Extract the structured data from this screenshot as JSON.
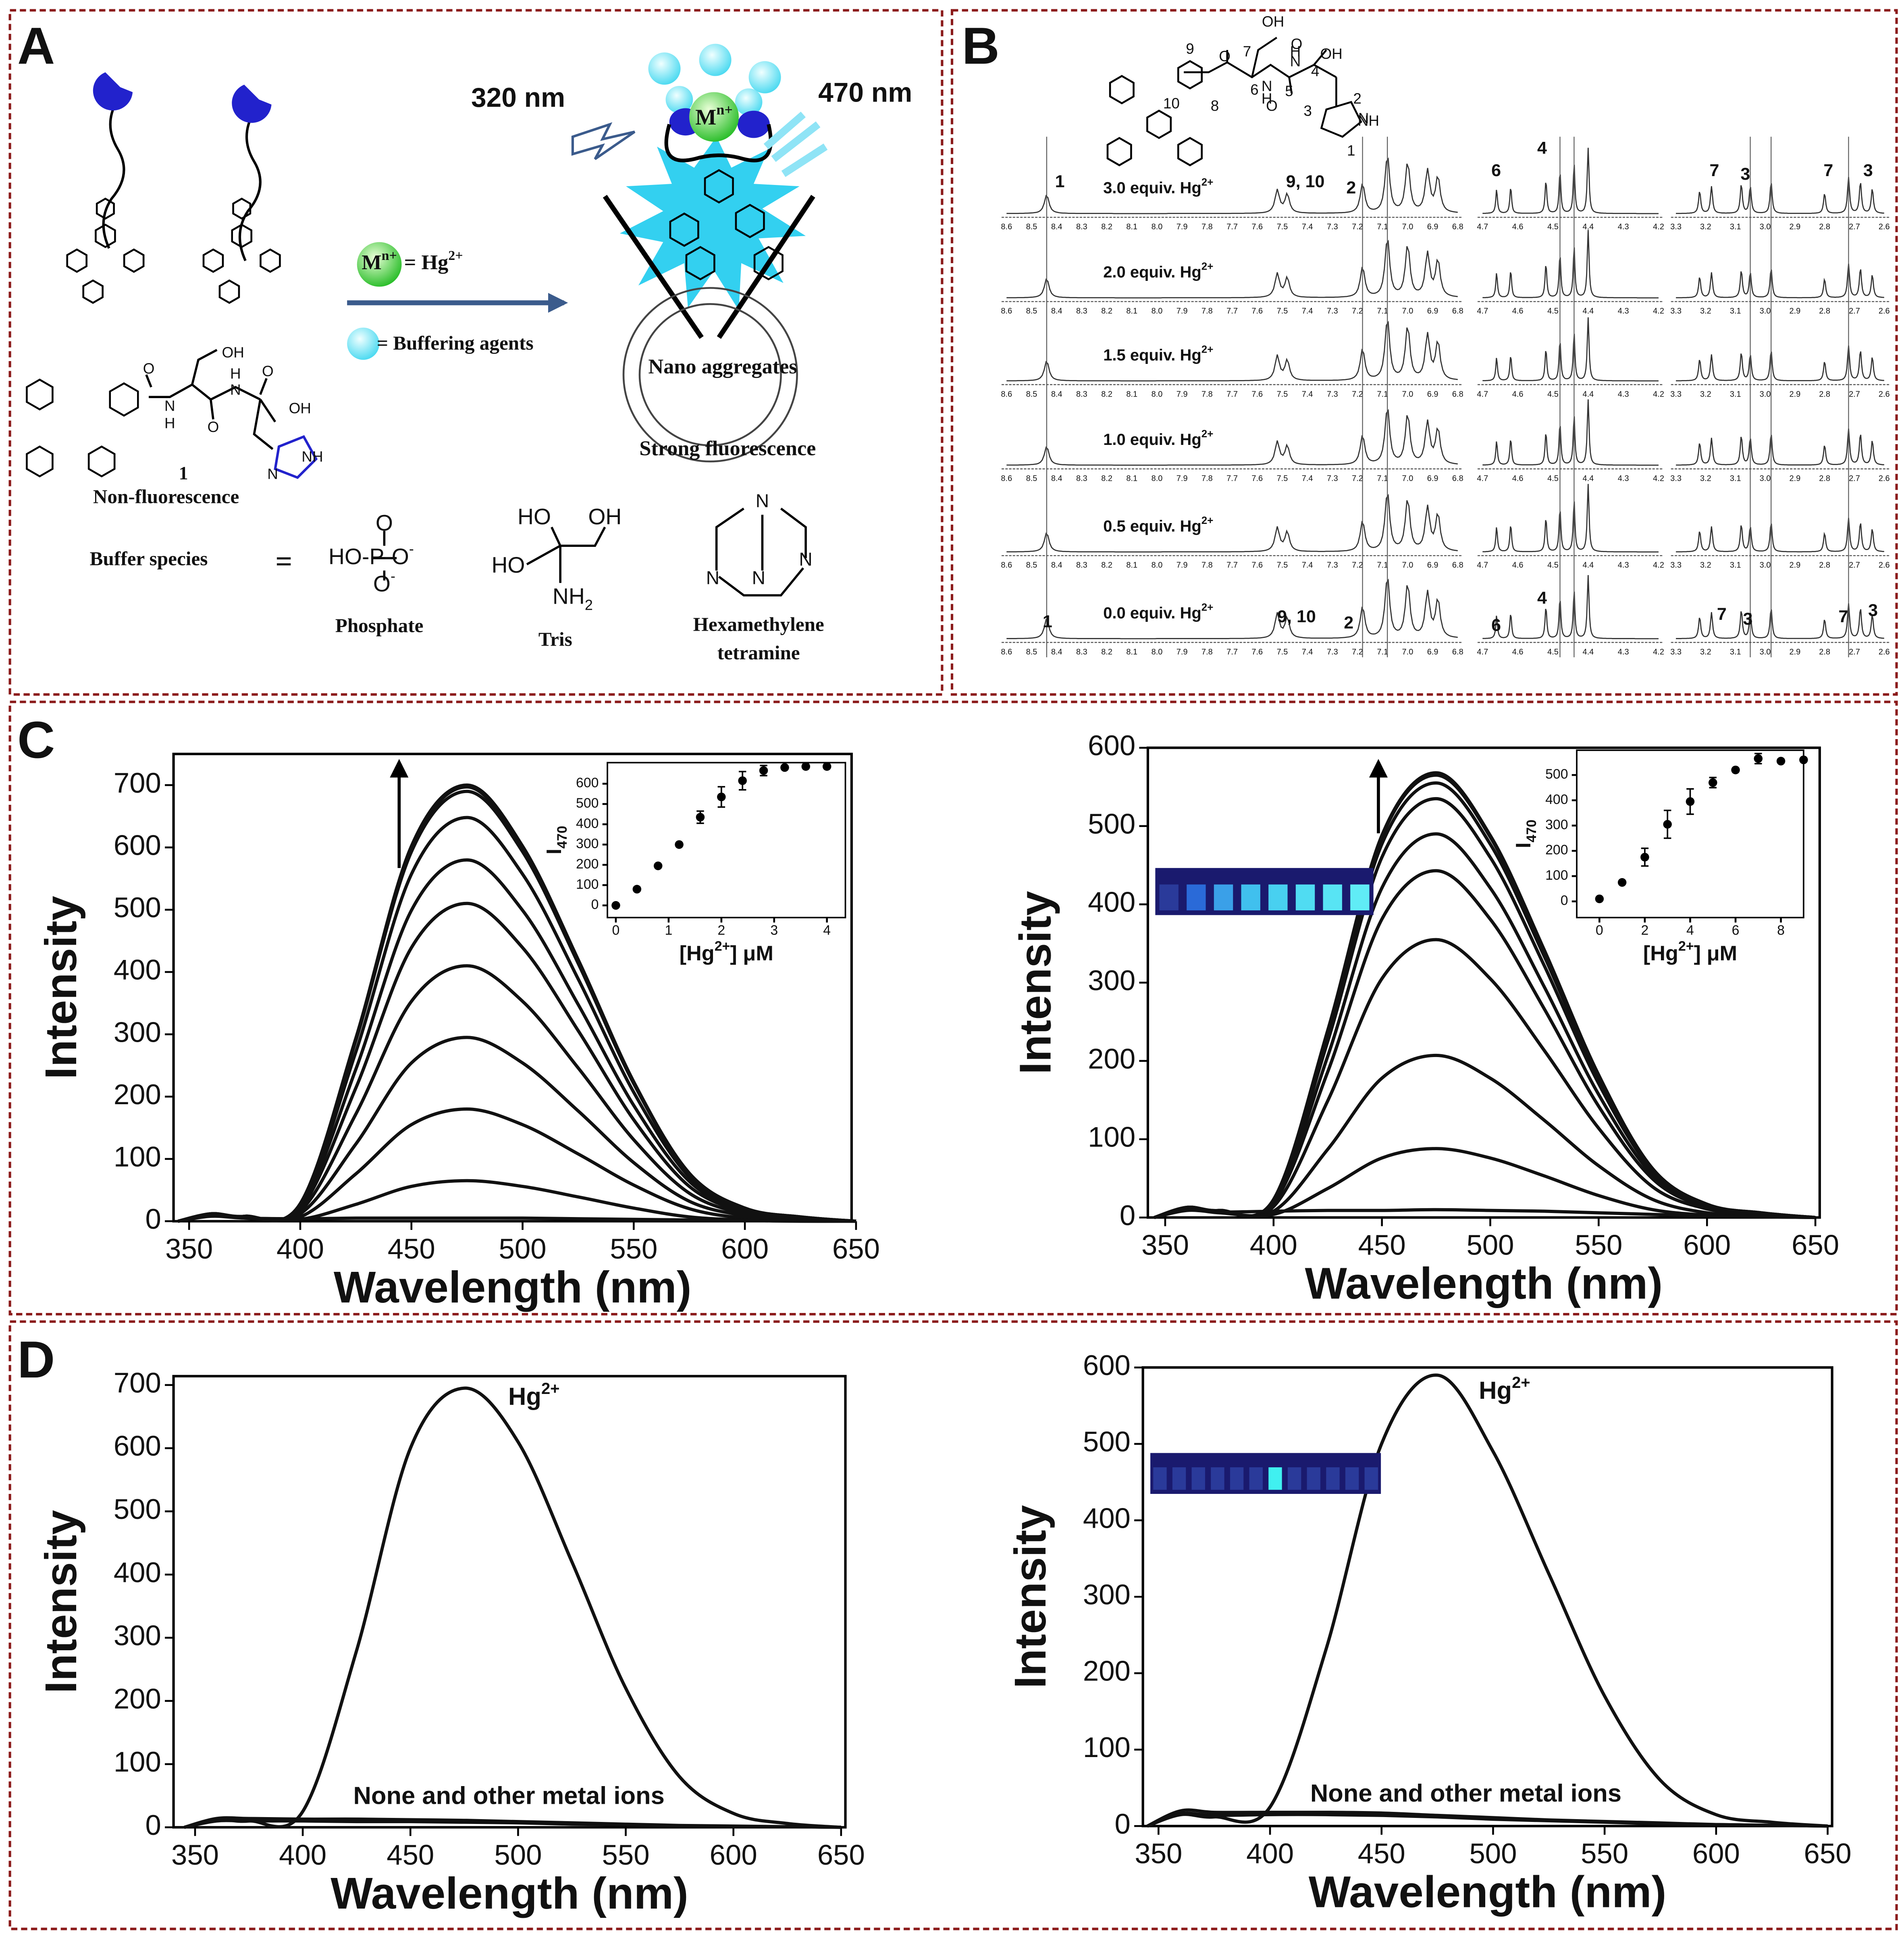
{
  "panels": [
    "A",
    "B",
    "C",
    "D"
  ],
  "panel_a": {
    "labels": [
      "320 nm",
      "470 nm",
      {
        "text": "M",
        "sup": "n+"
      },
      {
        "text": "M",
        "sup": "n+"
      },
      {
        "text": "= Hg",
        "sup": "2+"
      },
      "= Buffering agents",
      "Nano aggregates",
      "Strong fluorescence",
      "1",
      "Non-fluorescence",
      "Buffer species",
      "=",
      "Phosphate",
      "Tris",
      "Hexamethylene",
      "tetramine",
      "OH",
      "O",
      "N",
      "H",
      "O",
      "N",
      "H",
      "O",
      "OH",
      "N",
      "NH",
      "O",
      {
        "text": "HO-P-O",
        "sup": "-"
      },
      {
        "text": "O",
        "sup": "-"
      },
      "HO",
      "OH",
      "HO",
      {
        "text": "NH",
        "sub": "2"
      },
      "N",
      "N",
      "N",
      "N"
    ]
  },
  "panel_b": {
    "structure": [
      "OH",
      "O",
      "7",
      "O",
      "N",
      "H",
      "6",
      "N",
      "H",
      "5",
      "4",
      "O",
      "OH",
      "9",
      "10",
      "8",
      "3",
      "N",
      "2",
      "NH",
      "1"
    ],
    "spectra": [
      {
        "text": "3.0 equiv. Hg",
        "sup": "2+"
      },
      {
        "text": "2.0 equiv. Hg",
        "sup": "2+"
      },
      {
        "text": "1.5 equiv. Hg",
        "sup": "2+"
      },
      {
        "text": "1.0 equiv. Hg",
        "sup": "2+"
      },
      {
        "text": "0.5 equiv. Hg",
        "sup": "2+"
      },
      {
        "text": "0.0 equiv. Hg",
        "sup": "2+"
      }
    ],
    "axes": [
      [
        "8.6",
        "8.5",
        "8.4",
        "8.3",
        "8.2",
        "8.1",
        "8.0",
        "7.9",
        "7.8",
        "7.7",
        "7.6",
        "7.5",
        "7.4",
        "7.3",
        "7.2",
        "7.1",
        "7.0",
        "6.9",
        "6.8"
      ],
      [
        "4.7",
        "4.6",
        "4.5",
        "4.4",
        "4.3",
        "4.2"
      ],
      [
        "3.3",
        "3.2",
        "3.1",
        "3.0",
        "2.9",
        "2.8",
        "2.7",
        "2.6"
      ]
    ],
    "peaks_top": [
      "1",
      "9, 10",
      "2",
      "6",
      "4",
      "7",
      "3",
      "7",
      "3"
    ],
    "peaks_bottom": [
      "1",
      "9, 10",
      "2",
      "6",
      "4",
      "7",
      "3",
      "7",
      "3"
    ]
  },
  "chart_data": [
    {
      "type": "line",
      "color": "#111111",
      "xlabel": "Wavelength (nm)",
      "ylabel": "Intensity",
      "x": [
        345,
        360,
        375,
        400,
        425,
        450,
        475,
        500,
        525,
        550,
        575,
        600,
        625,
        650
      ],
      "xlim": [
        343,
        648
      ],
      "ylim": [
        0,
        750
      ],
      "xticks": [
        350,
        400,
        450,
        500,
        550,
        600,
        650
      ],
      "yticks": [
        0,
        100,
        200,
        300,
        400,
        500,
        600,
        700
      ],
      "series": [
        {
          "values": [
            0,
            12,
            8,
            28,
            294,
            602,
            700,
            602,
            420,
            224,
            77,
            21,
            7,
            0
          ]
        },
        {
          "values": [
            0,
            12,
            8,
            28,
            293,
            599,
            697,
            599,
            418,
            223,
            77,
            21,
            7,
            0
          ]
        },
        {
          "values": [
            0,
            12,
            8,
            28,
            290,
            593,
            690,
            593,
            414,
            221,
            76,
            21,
            7,
            0
          ]
        },
        {
          "values": [
            0,
            12,
            8,
            26,
            272,
            557,
            648,
            557,
            389,
            207,
            71,
            19,
            6,
            0
          ]
        },
        {
          "values": [
            0,
            12,
            8,
            23,
            244,
            499,
            580,
            499,
            348,
            186,
            64,
            17,
            6,
            0
          ]
        },
        {
          "values": [
            0,
            12,
            7,
            20,
            214,
            439,
            510,
            439,
            306,
            163,
            56,
            15,
            5,
            0
          ]
        },
        {
          "values": [
            0,
            11,
            7,
            16,
            172,
            353,
            410,
            353,
            246,
            131,
            45,
            12,
            4,
            0
          ]
        },
        {
          "values": [
            0,
            11,
            6,
            12,
            124,
            254,
            295,
            254,
            177,
            94,
            32,
            9,
            3,
            0
          ]
        },
        {
          "values": [
            0,
            10,
            6,
            7,
            76,
            155,
            180,
            155,
            108,
            58,
            20,
            5,
            2,
            0
          ]
        },
        {
          "values": [
            0,
            10,
            5,
            3,
            27,
            56,
            65,
            56,
            39,
            21,
            7,
            2,
            1,
            0
          ]
        },
        {
          "values": [
            0,
            8,
            5,
            4,
            5,
            5,
            5,
            5,
            4,
            3,
            2,
            1,
            0,
            0
          ]
        }
      ],
      "inset": {
        "type": "scatter",
        "xlabel": {
          "text": "[Hg",
          "sup": "2+",
          "after": "] μM"
        },
        "ylabel": {
          "text": "I",
          "sub": "470"
        },
        "x": [
          0,
          0.4,
          0.8,
          1.2,
          1.6,
          2,
          2.4,
          2.8,
          3.2,
          3.6,
          4
        ],
        "values": [
          0,
          80,
          195,
          300,
          435,
          535,
          615,
          665,
          680,
          685,
          685
        ],
        "errors": [
          0,
          0,
          0,
          0,
          30,
          50,
          45,
          25,
          0,
          0,
          0
        ],
        "xlim": [
          -0.16,
          4.35
        ],
        "ylim": [
          -60,
          704
        ],
        "xticks": [
          0,
          1,
          2,
          3,
          4
        ],
        "yticks": [
          0,
          100,
          200,
          300,
          400,
          500,
          600
        ]
      }
    },
    {
      "type": "line",
      "color": "#111111",
      "xlabel": "Wavelength (nm)",
      "ylabel": "Intensity",
      "x": [
        345,
        360,
        375,
        400,
        425,
        450,
        475,
        500,
        525,
        550,
        575,
        600,
        625,
        650
      ],
      "xlim": [
        342,
        652
      ],
      "ylim": [
        0,
        600
      ],
      "xticks": [
        350,
        400,
        450,
        500,
        550,
        600,
        650
      ],
      "yticks": [
        0,
        100,
        200,
        300,
        400,
        500,
        600
      ],
      "series": [
        {
          "values": [
            0,
            13,
            9,
            23,
            239,
            488,
            568,
            488,
            341,
            182,
            62,
            17,
            6,
            0
          ]
        },
        {
          "values": [
            0,
            13,
            9,
            23,
            237,
            486,
            565,
            486,
            339,
            181,
            62,
            17,
            6,
            0
          ]
        },
        {
          "values": [
            0,
            13,
            9,
            22,
            233,
            477,
            555,
            477,
            333,
            178,
            61,
            17,
            6,
            0
          ]
        },
        {
          "values": [
            0,
            13,
            9,
            21,
            225,
            460,
            535,
            460,
            321,
            171,
            59,
            16,
            5,
            0
          ]
        },
        {
          "values": [
            0,
            13,
            8,
            20,
            206,
            421,
            490,
            421,
            294,
            157,
            54,
            15,
            5,
            0
          ]
        },
        {
          "values": [
            0,
            12,
            8,
            18,
            186,
            381,
            443,
            381,
            266,
            142,
            49,
            13,
            4,
            0
          ]
        },
        {
          "values": [
            0,
            12,
            8,
            14,
            149,
            305,
            355,
            305,
            213,
            114,
            39,
            11,
            4,
            0
          ]
        },
        {
          "values": [
            0,
            11,
            7,
            8,
            87,
            178,
            207,
            178,
            124,
            66,
            23,
            6,
            2,
            0
          ]
        },
        {
          "values": [
            0,
            10,
            6,
            4,
            37,
            76,
            88,
            76,
            53,
            28,
            10,
            3,
            1,
            0
          ]
        },
        {
          "values": [
            0,
            9,
            7,
            8,
            9,
            9,
            10,
            9,
            8,
            6,
            4,
            2,
            1,
            0
          ]
        }
      ],
      "inset": {
        "type": "scatter",
        "xlabel": {
          "text": "[Hg",
          "sup": "2+",
          "after": "] μM"
        },
        "ylabel": {
          "text": "I",
          "sub": "470"
        },
        "x": [
          0,
          1,
          2,
          3,
          4,
          5,
          6,
          7,
          8,
          9
        ],
        "values": [
          10,
          75,
          175,
          305,
          395,
          470,
          520,
          565,
          555,
          560
        ],
        "errors": [
          0,
          0,
          35,
          55,
          50,
          20,
          0,
          20,
          0,
          0
        ],
        "xlim": [
          -1,
          9
        ],
        "ylim": [
          -64,
          598
        ],
        "xticks": [
          0,
          2,
          4,
          6,
          8
        ],
        "yticks": [
          0,
          100,
          200,
          300,
          400,
          500
        ]
      }
    },
    {
      "type": "line",
      "color": "#111111",
      "xlabel": "Wavelength (nm)",
      "ylabel": "Intensity",
      "x": [
        345,
        360,
        375,
        400,
        425,
        450,
        475,
        500,
        525,
        550,
        575,
        600,
        625,
        650
      ],
      "xlim": [
        340,
        652
      ],
      "ylim": [
        0,
        714
      ],
      "xticks": [
        350,
        400,
        450,
        500,
        550,
        600,
        650
      ],
      "yticks": [
        0,
        100,
        200,
        300,
        400,
        500,
        600,
        700
      ],
      "annotations": [
        {
          "text": "Hg",
          "sup": "2+"
        },
        "None and other metal ions"
      ],
      "series": [
        {
          "values": [
            0,
            12,
            10,
            25,
            280,
            600,
            695,
            610,
            420,
            220,
            80,
            22,
            6,
            0
          ]
        },
        {
          "values": [
            0,
            14,
            14,
            13,
            13,
            12,
            11,
            9,
            7,
            5,
            3,
            2,
            1,
            0
          ]
        },
        {
          "values": [
            0,
            10,
            10,
            10,
            9,
            9,
            8,
            7,
            5,
            4,
            2,
            1,
            1,
            0
          ]
        }
      ]
    },
    {
      "type": "line",
      "color": "#111111",
      "xlabel": "Wavelength (nm)",
      "ylabel": "Intensity",
      "x": [
        345,
        360,
        375,
        400,
        425,
        450,
        475,
        500,
        525,
        550,
        575,
        600,
        625,
        650
      ],
      "xlim": [
        343,
        652
      ],
      "ylim": [
        0,
        600
      ],
      "xticks": [
        350,
        400,
        450,
        500,
        550,
        600,
        650
      ],
      "yticks": [
        0,
        100,
        200,
        300,
        400,
        500,
        600
      ],
      "annotations": [
        {
          "text": "Hg",
          "sup": "2+"
        },
        "None and other metal ions"
      ],
      "series": [
        {
          "values": [
            0,
            15,
            12,
            25,
            230,
            500,
            590,
            490,
            330,
            170,
            60,
            15,
            5,
            0
          ]
        },
        {
          "values": [
            0,
            20,
            18,
            18,
            18,
            17,
            14,
            11,
            8,
            6,
            4,
            2,
            1,
            0
          ]
        },
        {
          "values": [
            0,
            16,
            14,
            15,
            15,
            14,
            12,
            9,
            7,
            5,
            3,
            2,
            1,
            0
          ]
        }
      ]
    }
  ]
}
